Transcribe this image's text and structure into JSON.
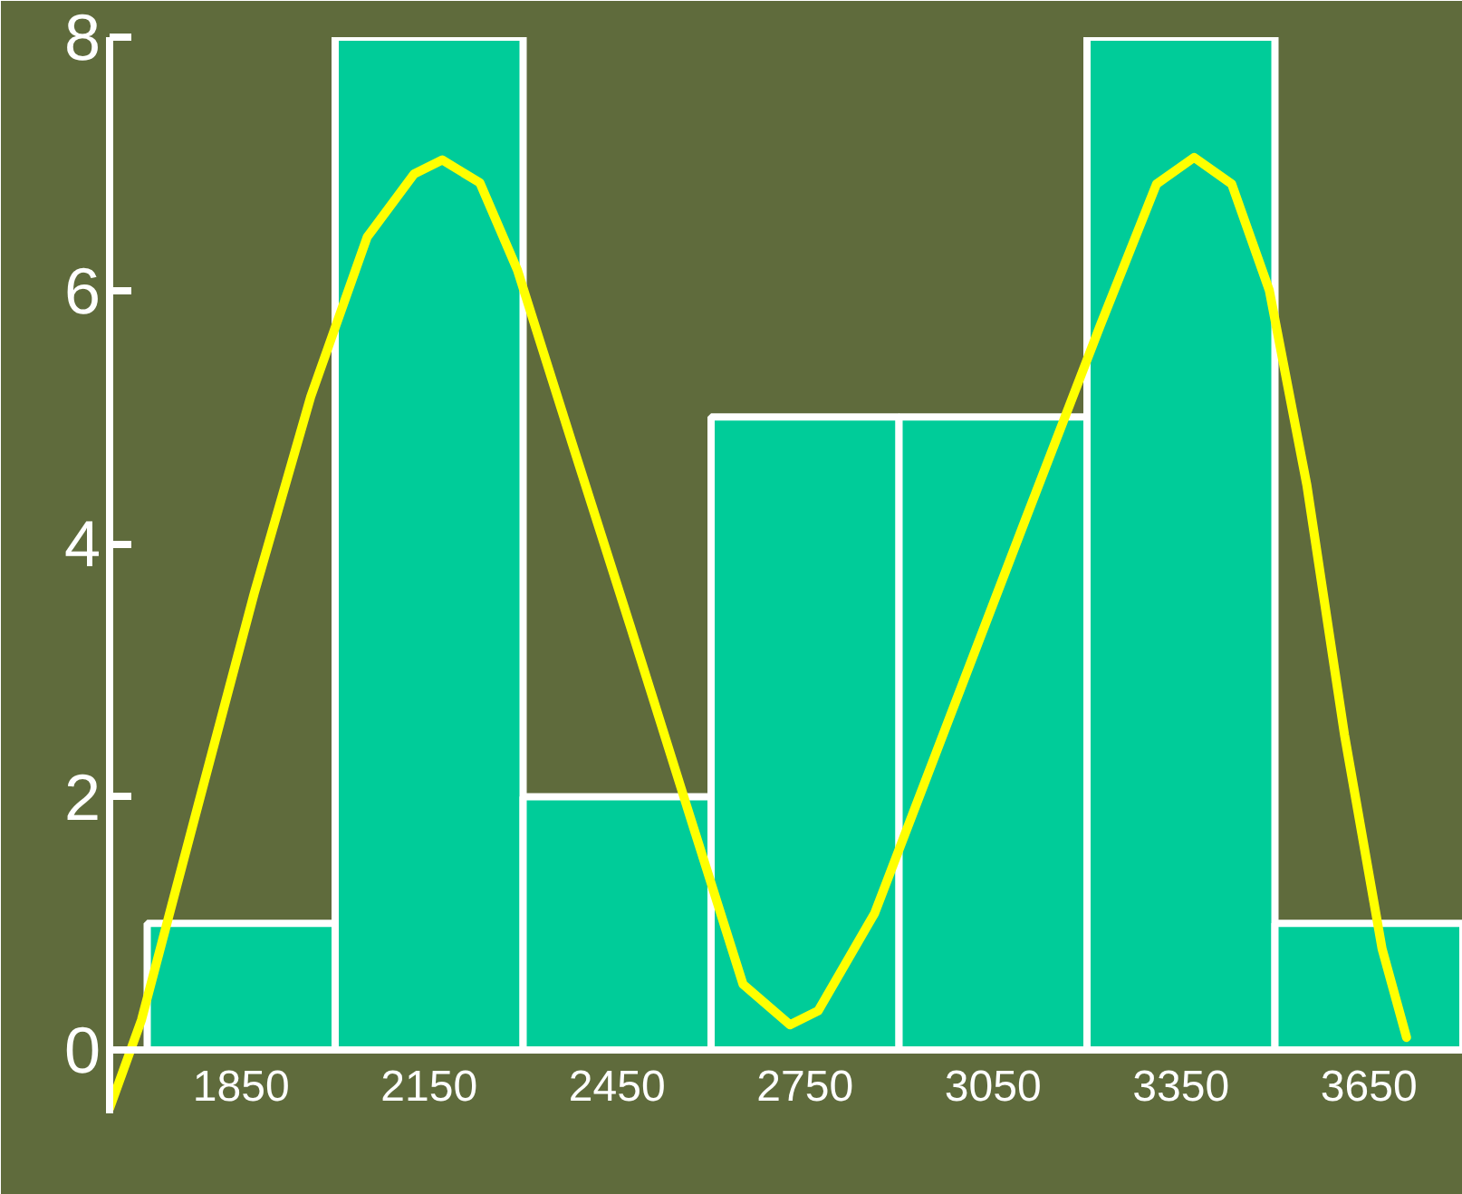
{
  "chart_data": {
    "type": "histogram",
    "bins": [
      1700,
      2000,
      2300,
      2600,
      2900,
      3200,
      3500,
      3800
    ],
    "series": [
      {
        "color": "#00cc99",
        "values": [
          1,
          8,
          2,
          5,
          5,
          8,
          1
        ]
      },
      {
        "type": "line",
        "color": "#ffff00",
        "x": [
          1640,
          1691,
          1781,
          1871,
          1961,
          2051,
          2126,
          2171,
          2231,
          2291,
          2381,
          2471,
          2561,
          2651,
          2726,
          2771,
          2861,
          2981,
          3101,
          3221,
          3311,
          3371,
          3431,
          3491,
          3551,
          3611,
          3671,
          3710
        ],
        "values": [
          -0.46,
          0.24,
          1.93,
          3.61,
          5.16,
          6.42,
          6.92,
          7.03,
          6.85,
          6.16,
          4.75,
          3.35,
          1.93,
          0.52,
          0.2,
          0.31,
          1.08,
          2.63,
          4.18,
          5.72,
          6.84,
          7.05,
          6.84,
          6.0,
          4.46,
          2.49,
          0.8,
          0.1
        ]
      }
    ],
    "xlim": [
      1640,
      3800
    ],
    "ylim": [
      -0.5,
      8
    ],
    "xticks": [
      1850,
      2150,
      2450,
      2750,
      3050,
      3350,
      3650
    ],
    "yticks": [
      0,
      2,
      4,
      6,
      8
    ]
  }
}
